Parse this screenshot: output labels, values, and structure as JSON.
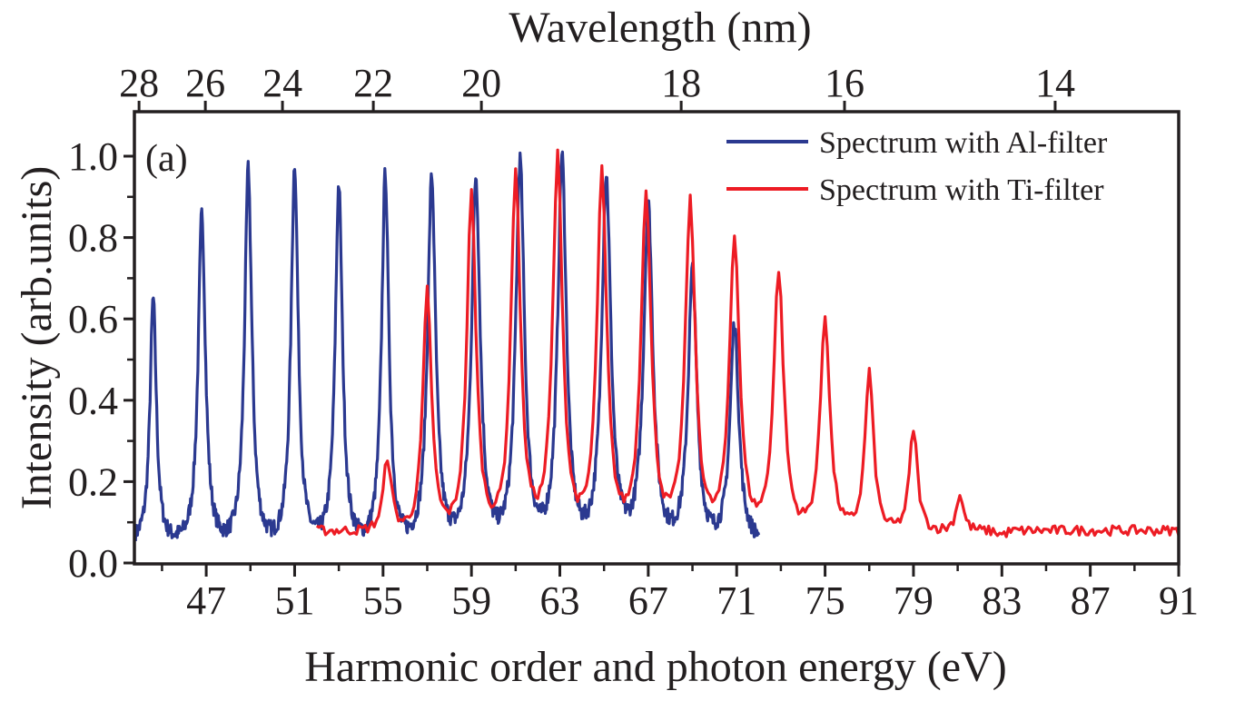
{
  "chart_data": {
    "type": "line",
    "panel_label": "(a)",
    "xlabel": "Harmonic order and photon energy (eV)",
    "ylabel": "Intensity (arb.units)",
    "top_xlabel": "Wavelength (nm)",
    "xlim": [
      43.75,
      91
    ],
    "ylim": [
      0,
      1.1
    ],
    "grid": false,
    "legend_position": "top-right",
    "x_ticks": [
      47,
      51,
      55,
      59,
      63,
      67,
      71,
      75,
      79,
      83,
      87,
      91
    ],
    "x_tick_labels": [
      "47",
      "51",
      "55",
      "59",
      "63",
      "67",
      "71",
      "75",
      "79",
      "83",
      "87",
      "91"
    ],
    "x_minor_ticks": [
      45,
      49,
      53,
      57,
      61,
      65,
      69,
      73,
      77,
      81,
      85,
      89
    ],
    "y_ticks": [
      0.0,
      0.2,
      0.4,
      0.6,
      0.8,
      1.0
    ],
    "y_tick_labels": [
      "0.0",
      "0.2",
      "0.4",
      "0.6",
      "0.8",
      "1.0"
    ],
    "y_minor_ticks": [
      0.1,
      0.3,
      0.5,
      0.7,
      0.9
    ],
    "top_ticks": [
      {
        "label": "28",
        "at_order": 43.96
      },
      {
        "label": "26",
        "at_order": 46.96
      },
      {
        "label": "24",
        "at_order": 50.45
      },
      {
        "label": "22",
        "at_order": 54.56
      },
      {
        "label": "20",
        "at_order": 59.45
      },
      {
        "label": "18",
        "at_order": 68.49
      },
      {
        "label": "16",
        "at_order": 75.88
      },
      {
        "label": "14",
        "at_order": 85.41
      }
    ],
    "series": [
      {
        "name": "Spectrum with Al-filter",
        "color": "#2b3990",
        "range": [
          43.8,
          72.0
        ],
        "baseline": 0.06,
        "noise": 0.02,
        "peaks": [
          {
            "x": 44.6,
            "y": 0.65,
            "w": 0.22
          },
          {
            "x": 46.8,
            "y": 0.86,
            "w": 0.25
          },
          {
            "x": 48.9,
            "y": 0.97,
            "w": 0.25
          },
          {
            "x": 51.0,
            "y": 0.98,
            "w": 0.25
          },
          {
            "x": 53.0,
            "y": 0.93,
            "w": 0.25
          },
          {
            "x": 55.1,
            "y": 0.96,
            "w": 0.25
          },
          {
            "x": 57.2,
            "y": 0.95,
            "w": 0.28
          },
          {
            "x": 59.2,
            "y": 0.95,
            "w": 0.3
          },
          {
            "x": 61.2,
            "y": 0.99,
            "w": 0.3
          },
          {
            "x": 63.1,
            "y": 1.0,
            "w": 0.3
          },
          {
            "x": 65.1,
            "y": 0.95,
            "w": 0.32
          },
          {
            "x": 67.0,
            "y": 0.88,
            "w": 0.32
          },
          {
            "x": 69.0,
            "y": 0.72,
            "w": 0.3
          },
          {
            "x": 70.9,
            "y": 0.59,
            "w": 0.3
          }
        ]
      },
      {
        "name": "Spectrum with Ti-filter",
        "color": "#ed1c24",
        "range": [
          52.0,
          91.0
        ],
        "baseline": 0.08,
        "noise": 0.012,
        "peaks": [
          {
            "x": 55.2,
            "y": 0.26,
            "w": 0.28
          },
          {
            "x": 57.0,
            "y": 0.67,
            "w": 0.3
          },
          {
            "x": 59.0,
            "y": 0.91,
            "w": 0.32
          },
          {
            "x": 61.0,
            "y": 0.97,
            "w": 0.33
          },
          {
            "x": 62.9,
            "y": 1.0,
            "w": 0.34
          },
          {
            "x": 64.9,
            "y": 0.96,
            "w": 0.34
          },
          {
            "x": 66.9,
            "y": 0.92,
            "w": 0.35
          },
          {
            "x": 68.9,
            "y": 0.89,
            "w": 0.35
          },
          {
            "x": 70.9,
            "y": 0.81,
            "w": 0.35
          },
          {
            "x": 72.9,
            "y": 0.72,
            "w": 0.35
          },
          {
            "x": 75.0,
            "y": 0.61,
            "w": 0.33
          },
          {
            "x": 77.0,
            "y": 0.47,
            "w": 0.3
          },
          {
            "x": 79.0,
            "y": 0.33,
            "w": 0.28
          },
          {
            "x": 81.1,
            "y": 0.17,
            "w": 0.25
          },
          {
            "x": 83.0,
            "y": 0.07,
            "w": 0.3
          }
        ]
      }
    ]
  }
}
